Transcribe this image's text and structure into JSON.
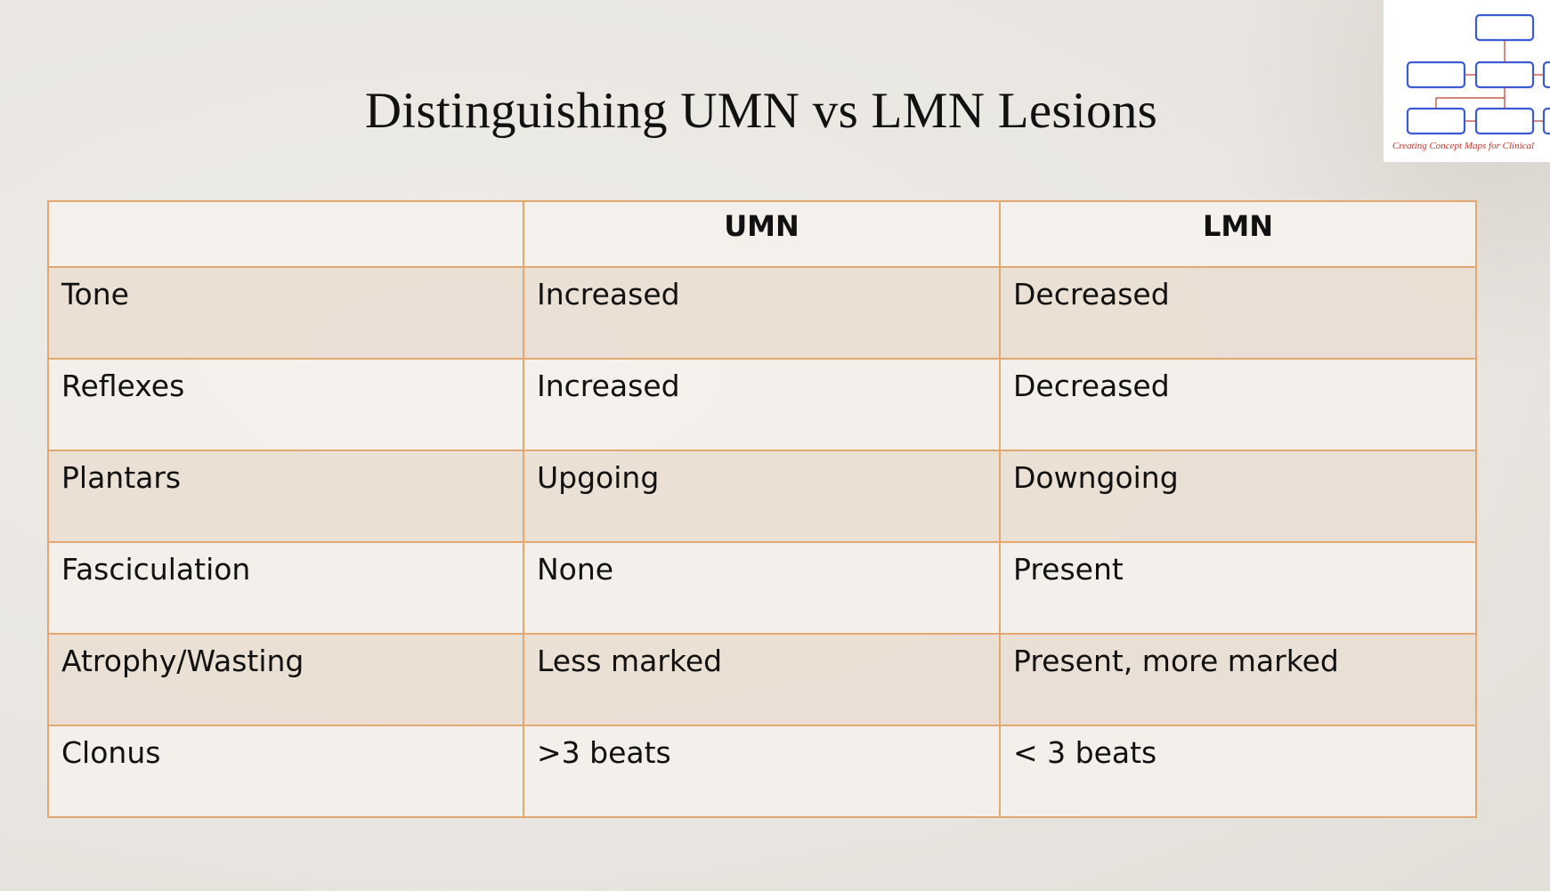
{
  "slide": {
    "title": "Distinguishing UMN vs LMN Lesions"
  },
  "thumbnail": {
    "caption": "Creating Concept Maps for Clinical"
  },
  "table": {
    "headers": [
      "",
      "UMN",
      "LMN"
    ],
    "rows": [
      [
        "Tone",
        "Increased",
        "Decreased"
      ],
      [
        "Reflexes",
        "Increased",
        "Decreased"
      ],
      [
        "Plantars",
        "Upgoing",
        "Downgoing"
      ],
      [
        "Fasciculation",
        "None",
        "Present"
      ],
      [
        "Atrophy/Wasting",
        "Less marked",
        "Present, more marked"
      ],
      [
        "Clonus",
        ">3 beats",
        "< 3 beats"
      ]
    ]
  },
  "colors": {
    "border": "#e3a771",
    "shaded_row": "#e9ded3",
    "plain_row": "#f3f0ec",
    "thumbnail_box": "#3b5bd6",
    "thumbnail_line": "#c0392b"
  }
}
